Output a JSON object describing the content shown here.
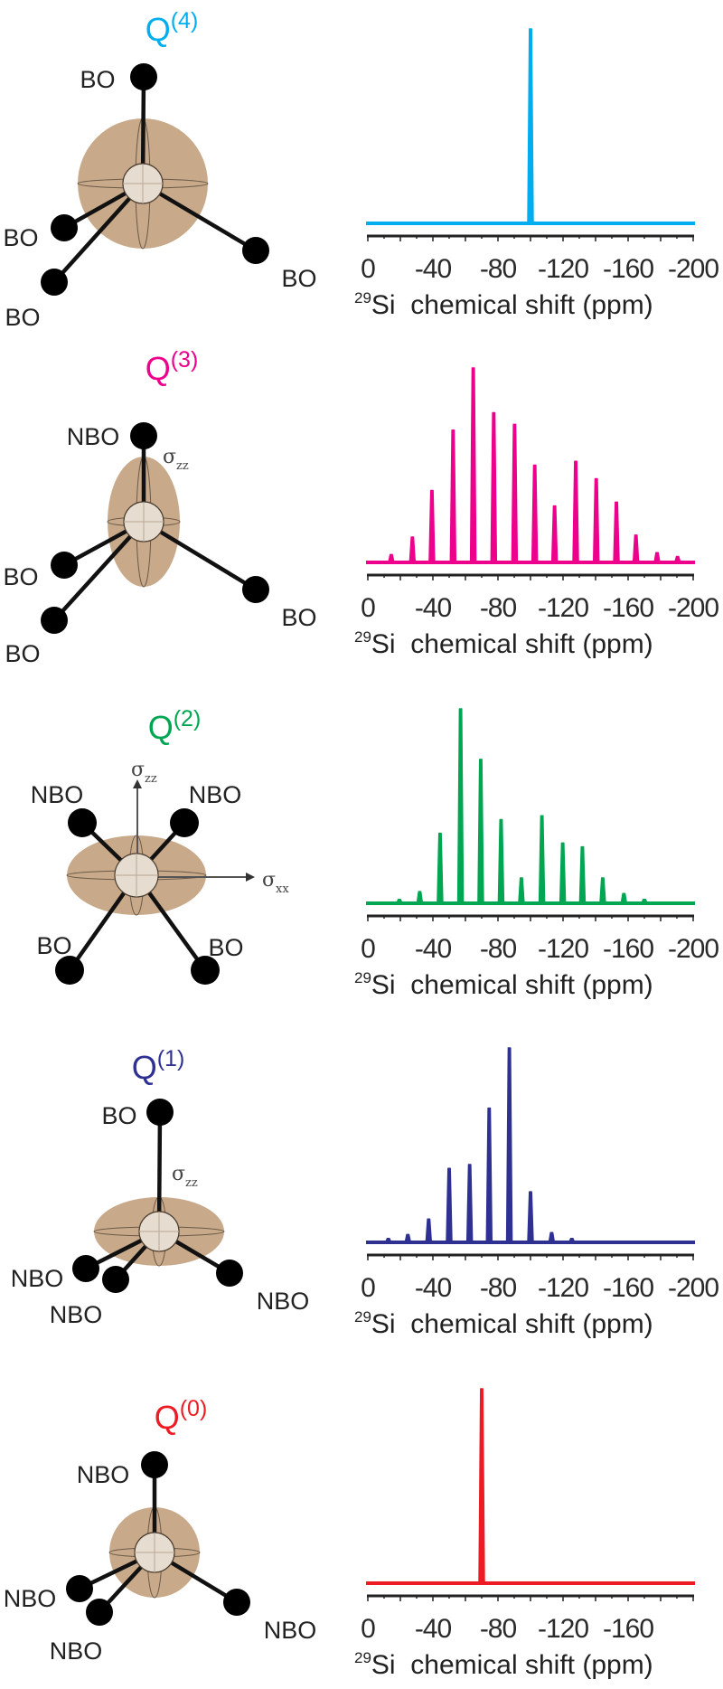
{
  "panels": [
    {
      "title_base": "Q",
      "title_sup": "(4)",
      "color": "#00AEEF",
      "atom_labels": [
        "BO",
        "BO",
        "BO",
        "BO"
      ],
      "tensor_labels": []
    },
    {
      "title_base": "Q",
      "title_sup": "(3)",
      "color": "#EC008C",
      "atom_labels": [
        "NBO",
        "BO",
        "BO",
        "BO"
      ],
      "tensor_labels": [
        {
          "sym": "σ",
          "sub": "zz"
        }
      ]
    },
    {
      "title_base": "Q",
      "title_sup": "(2)",
      "color": "#00A651",
      "atom_labels": [
        "NBO",
        "NBO",
        "BO",
        "BO"
      ],
      "tensor_labels": [
        {
          "sym": "σ",
          "sub": "zz"
        },
        {
          "sym": "σ",
          "sub": "xx"
        }
      ]
    },
    {
      "title_base": "Q",
      "title_sup": "(1)",
      "color": "#2E3192",
      "atom_labels": [
        "BO",
        "NBO",
        "NBO",
        "NBO"
      ],
      "tensor_labels": [
        {
          "sym": "σ",
          "sub": "zz"
        }
      ]
    },
    {
      "title_base": "Q",
      "title_sup": "(0)",
      "color": "#ED1C24",
      "atom_labels": [
        "NBO",
        "NBO",
        "NBO",
        "NBO"
      ],
      "tensor_labels": []
    }
  ],
  "colors": {
    "tensor_ellipse": "#C8A98A",
    "si_atom": "#E6DCCF",
    "oxygen": "#000000",
    "axis": "#222222"
  },
  "chart_data": [
    {
      "type": "line",
      "xlabel_mass": "29",
      "xlabel": "Si  chemical shift (ppm)",
      "xlim": [
        0,
        -200
      ],
      "xticks": [
        "0",
        "-40",
        "-80",
        "-120",
        "-160",
        "-200"
      ],
      "xtick_values": [
        0,
        -40,
        -80,
        -120,
        -160,
        -200
      ],
      "y_axis": "none",
      "grid": false,
      "peaks": [
        {
          "shift": -100,
          "intensity": 1.0
        }
      ]
    },
    {
      "type": "line",
      "xlabel_mass": "29",
      "xlabel": "Si  chemical shift (ppm)",
      "xlim": [
        0,
        -200
      ],
      "xticks": [
        "0",
        "-40",
        "-80",
        "-120",
        "-160",
        "-200"
      ],
      "xtick_values": [
        0,
        -40,
        -80,
        -120,
        -160,
        -200
      ],
      "y_axis": "none",
      "grid": false,
      "peaks": [
        {
          "shift": -14.4,
          "intensity": 0.04
        },
        {
          "shift": -27.4,
          "intensity": 0.13
        },
        {
          "shift": -39.4,
          "intensity": 0.37
        },
        {
          "shift": -52.4,
          "intensity": 0.68
        },
        {
          "shift": -64.8,
          "intensity": 1.0
        },
        {
          "shift": -77.4,
          "intensity": 0.77
        },
        {
          "shift": -90.2,
          "intensity": 0.71
        },
        {
          "shift": -102.6,
          "intensity": 0.5
        },
        {
          "shift": -114.8,
          "intensity": 0.29
        },
        {
          "shift": -127.8,
          "intensity": 0.52
        },
        {
          "shift": -140.4,
          "intensity": 0.43
        },
        {
          "shift": -152.8,
          "intensity": 0.31
        },
        {
          "shift": -164.8,
          "intensity": 0.14
        },
        {
          "shift": -177.8,
          "intensity": 0.05
        },
        {
          "shift": -190.4,
          "intensity": 0.03
        }
      ]
    },
    {
      "type": "line",
      "xlabel_mass": "29",
      "xlabel": "Si  chemical shift (ppm)",
      "xlim": [
        0,
        -200
      ],
      "xticks": [
        "0",
        "-40",
        "-80",
        "-120",
        "-160",
        "-200"
      ],
      "xtick_values": [
        0,
        -40,
        -80,
        -120,
        -160,
        -200
      ],
      "y_axis": "none",
      "grid": false,
      "peaks": [
        {
          "shift": -19.4,
          "intensity": 0.02
        },
        {
          "shift": -31.9,
          "intensity": 0.06
        },
        {
          "shift": -44.4,
          "intensity": 0.36
        },
        {
          "shift": -57.0,
          "intensity": 1.0
        },
        {
          "shift": -69.4,
          "intensity": 0.74
        },
        {
          "shift": -81.9,
          "intensity": 0.43
        },
        {
          "shift": -94.4,
          "intensity": 0.13
        },
        {
          "shift": -107.0,
          "intensity": 0.45
        },
        {
          "shift": -119.8,
          "intensity": 0.31
        },
        {
          "shift": -131.9,
          "intensity": 0.29
        },
        {
          "shift": -144.4,
          "intensity": 0.13
        },
        {
          "shift": -157.4,
          "intensity": 0.05
        },
        {
          "shift": -170.0,
          "intensity": 0.02
        }
      ]
    },
    {
      "type": "line",
      "xlabel_mass": "29",
      "xlabel": "Si  chemical shift (ppm)",
      "xlim": [
        0,
        -200
      ],
      "xticks": [
        "0",
        "-40",
        "-80",
        "-120",
        "-160",
        "-200"
      ],
      "xtick_values": [
        0,
        -40,
        -80,
        -120,
        -160,
        -200
      ],
      "y_axis": "none",
      "grid": false,
      "peaks": [
        {
          "shift": -12.6,
          "intensity": 0.02
        },
        {
          "shift": -24.6,
          "intensity": 0.04
        },
        {
          "shift": -37.4,
          "intensity": 0.12
        },
        {
          "shift": -50.0,
          "intensity": 0.38
        },
        {
          "shift": -62.6,
          "intensity": 0.4
        },
        {
          "shift": -74.6,
          "intensity": 0.69
        },
        {
          "shift": -87.0,
          "intensity": 1.0
        },
        {
          "shift": -100.0,
          "intensity": 0.26
        },
        {
          "shift": -113.0,
          "intensity": 0.05
        },
        {
          "shift": -125.4,
          "intensity": 0.02
        }
      ]
    },
    {
      "type": "line",
      "xlabel_mass": "29",
      "xlabel": "Si  chemical shift (ppm)",
      "xlim": [
        0,
        -200
      ],
      "xticks": [
        "0",
        "-40",
        "-80",
        "-120",
        "-160"
      ],
      "xtick_values": [
        0,
        -40,
        -80,
        -120,
        -160
      ],
      "y_axis": "none",
      "grid": false,
      "peaks": [
        {
          "shift": -70,
          "intensity": 1.0
        }
      ]
    }
  ]
}
